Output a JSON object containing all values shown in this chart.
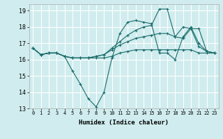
{
  "bg_color": "#d0ecee",
  "grid_color": "#ffffff",
  "line_color": "#1a6b6b",
  "xlabel": "Humidex (Indice chaleur)",
  "xlim": [
    -0.5,
    23.5
  ],
  "ylim": [
    13,
    19.4
  ],
  "yticks": [
    13,
    14,
    15,
    16,
    17,
    18,
    19
  ],
  "xticks": [
    0,
    1,
    2,
    3,
    4,
    5,
    6,
    7,
    8,
    9,
    10,
    11,
    12,
    13,
    14,
    15,
    16,
    17,
    18,
    19,
    20,
    21,
    22,
    23
  ],
  "series": [
    [
      16.7,
      16.3,
      16.4,
      16.4,
      16.2,
      15.3,
      14.5,
      13.6,
      13.1,
      14.0,
      16.1,
      17.6,
      18.3,
      18.4,
      18.3,
      18.2,
      16.4,
      16.4,
      16.0,
      17.4,
      18.0,
      17.0,
      16.5,
      16.4
    ],
    [
      16.7,
      16.3,
      16.4,
      16.4,
      16.2,
      16.1,
      16.1,
      16.1,
      16.1,
      16.1,
      16.2,
      16.4,
      16.5,
      16.6,
      16.6,
      16.6,
      16.6,
      16.6,
      16.6,
      16.6,
      16.6,
      16.4,
      16.4,
      16.4
    ],
    [
      16.7,
      16.3,
      16.4,
      16.4,
      16.2,
      16.1,
      16.1,
      16.1,
      16.2,
      16.3,
      16.6,
      16.9,
      17.1,
      17.3,
      17.4,
      17.5,
      17.6,
      17.6,
      17.4,
      17.3,
      17.9,
      17.9,
      16.5,
      16.4
    ],
    [
      16.7,
      16.3,
      16.4,
      16.4,
      16.2,
      16.1,
      16.1,
      16.1,
      16.2,
      16.3,
      16.7,
      17.1,
      17.5,
      17.8,
      18.0,
      18.1,
      19.1,
      19.1,
      17.4,
      18.0,
      17.9,
      16.8,
      16.5,
      16.4
    ]
  ]
}
